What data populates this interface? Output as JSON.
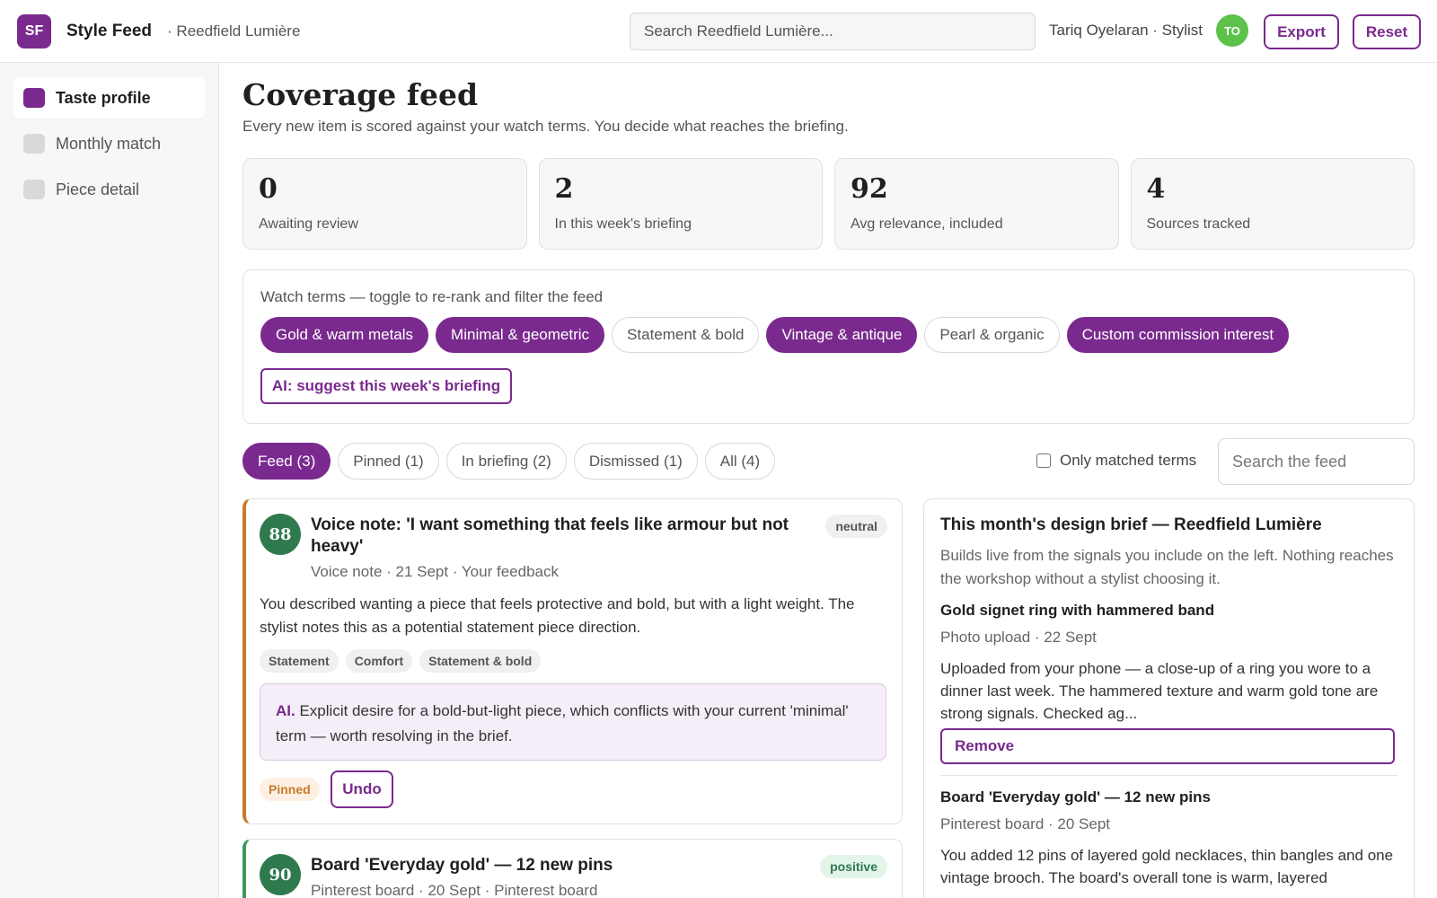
{
  "app": {
    "logo_text": "SF",
    "title": "Style Feed",
    "workspace": "· Reedfield Lumière",
    "search_placeholder": "Search Reedfield Lumière...",
    "user": "Tariq Oyelaran · Stylist",
    "avatar_initials": "TO",
    "export_label": "Export",
    "reset_label": "Reset"
  },
  "sidebar": {
    "items": [
      {
        "label": "Taste profile",
        "active": true
      },
      {
        "label": "Monthly match",
        "active": false
      },
      {
        "label": "Piece detail",
        "active": false
      }
    ]
  },
  "page": {
    "title": "Coverage feed",
    "subtitle": "Every new item is scored against your watch terms. You decide what reaches the briefing."
  },
  "stats": [
    {
      "value": "0",
      "label": "Awaiting review"
    },
    {
      "value": "2",
      "label": "In this week's briefing"
    },
    {
      "value": "92",
      "label": "Avg relevance, included"
    },
    {
      "value": "4",
      "label": "Sources tracked"
    }
  ],
  "watch_terms": {
    "label": "Watch terms — toggle to re-rank and filter the feed",
    "terms": [
      {
        "label": "Gold & warm metals",
        "on": true
      },
      {
        "label": "Minimal & geometric",
        "on": true
      },
      {
        "label": "Statement & bold",
        "on": false
      },
      {
        "label": "Vintage & antique",
        "on": true
      },
      {
        "label": "Pearl & organic",
        "on": false
      },
      {
        "label": "Custom commission interest",
        "on": true
      }
    ],
    "ai_button": "AI: suggest this week's briefing"
  },
  "tabs": [
    {
      "label": "Feed (3)",
      "active": true
    },
    {
      "label": "Pinned (1)",
      "active": false
    },
    {
      "label": "In briefing (2)",
      "active": false
    },
    {
      "label": "Dismissed (1)",
      "active": false
    },
    {
      "label": "All (4)",
      "active": false
    }
  ],
  "filters": {
    "only_matched_label": "Only matched terms",
    "only_matched_checked": false,
    "search_placeholder": "Search the feed"
  },
  "feed": [
    {
      "score": "88",
      "title": "Voice note: 'I want something that feels like armour but not heavy'",
      "sentiment": "neutral",
      "meta": "Voice note · 21 Sept · Your feedback",
      "body": "You described wanting a piece that feels protective and bold, but with a light weight. The stylist notes this as a potential statement piece direction.",
      "tags": [
        "Statement",
        "Comfort",
        "Statement & bold"
      ],
      "ai_label": "AI.",
      "ai_text": "Explicit desire for a bold-but-light piece, which conflicts with your current 'minimal' term — worth resolving in the brief.",
      "status": "Pinned",
      "action": "Undo"
    },
    {
      "score": "90",
      "title": "Board 'Everyday gold' — 12 new pins",
      "sentiment": "positive",
      "meta": "Pinterest board · 20 Sept · Pinterest board"
    }
  ],
  "brief": {
    "title": "This month's design brief — Reedfield Lumière",
    "subtitle": "Builds live from the signals you include on the left. Nothing reaches the workshop without a stylist choosing it.",
    "items": [
      {
        "title": "Gold signet ring with hammered band",
        "meta": "Photo upload · 22 Sept",
        "body": "Uploaded from your phone — a close-up of a ring you wore to a dinner last week. The hammered texture and warm gold tone are strong signals. Checked ag...",
        "action": "Remove"
      },
      {
        "title": "Board 'Everyday gold' — 12 new pins",
        "meta": "Pinterest board · 20 Sept",
        "body": "You added 12 pins of layered gold necklaces, thin bangles and one vintage brooch. The board's overall tone is warm, layered"
      }
    ]
  },
  "colors": {
    "accent": "#7a2a8e",
    "score_green": "#2e7a4e",
    "pinned_orange": "#c87a2a",
    "avatar_green": "#5cc24a"
  }
}
